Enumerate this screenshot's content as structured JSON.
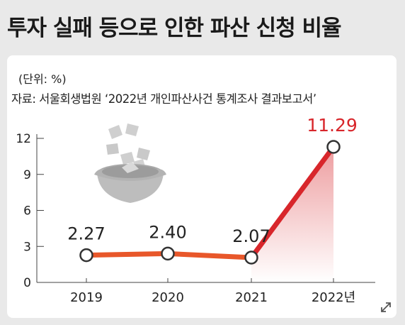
{
  "title": "투자 실패 등으로 인한 파산 신청 비율",
  "unit_note": "(단위: %)",
  "source_note": "자료: 서울회생법원 ‘2022년 개인파산사건 통계조사 결과보고서’",
  "colors": {
    "line_low": "#e8572a",
    "line_high": "#d8262b",
    "highlight_label": "#d8262b",
    "text": "#222222"
  },
  "icons": [
    "bankruptcy-papers-box-icon",
    "expand-icon"
  ],
  "chart_data": {
    "type": "line",
    "categories": [
      "2019",
      "2020",
      "2021",
      "2022년"
    ],
    "values": [
      2.27,
      2.4,
      2.07,
      11.29
    ],
    "value_labels": [
      "2.27",
      "2.40",
      "2.07",
      "11.29"
    ],
    "title": "투자 실패 등으로 인한 파산 신청 비율",
    "ylabel": "",
    "xlabel": "",
    "ylim": [
      0,
      12
    ],
    "yticks": [
      0,
      3,
      6,
      9,
      12
    ],
    "ytick_labels": [
      "0",
      "3",
      "6",
      "9",
      "12"
    ],
    "highlight_index": 3
  }
}
